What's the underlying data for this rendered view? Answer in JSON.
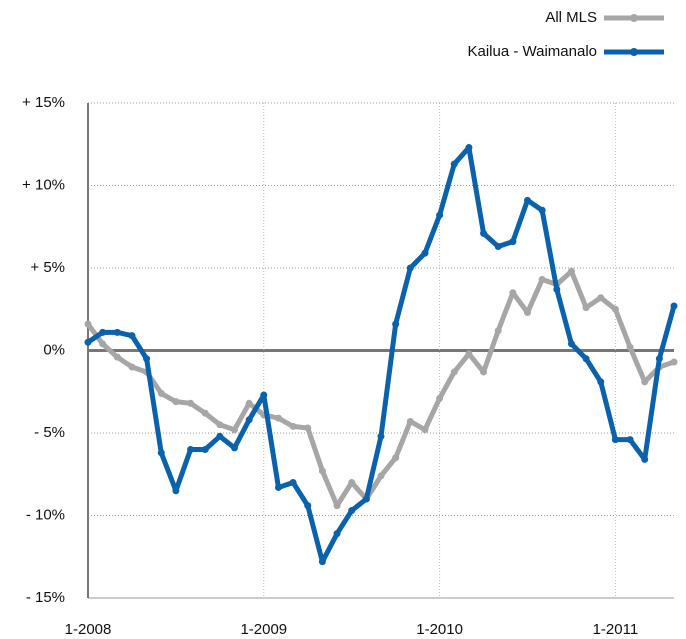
{
  "chart_data": {
    "type": "line",
    "x": [
      0,
      1,
      2,
      3,
      4,
      5,
      6,
      7,
      8,
      9,
      10,
      11,
      12,
      13,
      14,
      15,
      16,
      17,
      18,
      19,
      20,
      21,
      22,
      23,
      24,
      25,
      26,
      27,
      28,
      29,
      30,
      31,
      32,
      33,
      34,
      35,
      36,
      37,
      38,
      39,
      40
    ],
    "series": [
      {
        "name": "All MLS",
        "color": "#a6a6a6",
        "values": [
          1.6,
          0.4,
          -0.4,
          -1.0,
          -1.3,
          -2.6,
          -3.1,
          -3.2,
          -3.8,
          -4.5,
          -4.8,
          -3.2,
          -3.9,
          -4.1,
          -4.6,
          -4.7,
          -7.3,
          -9.4,
          -8.0,
          -9.0,
          -7.6,
          -6.5,
          -4.3,
          -4.8,
          -2.9,
          -1.3,
          -0.2,
          -1.3,
          1.2,
          3.5,
          2.3,
          4.3,
          4.0,
          4.8,
          2.6,
          3.2,
          2.5,
          0.2,
          -1.9,
          -1.0,
          -0.7
        ]
      },
      {
        "name": "Kailua - Waimanalo",
        "color": "#0a62ad",
        "values": [
          0.5,
          1.1,
          1.1,
          0.9,
          -0.5,
          -6.2,
          -8.5,
          -6.0,
          -6.0,
          -5.2,
          -5.9,
          -4.2,
          -2.7,
          -8.3,
          -8.0,
          -9.4,
          -12.8,
          -11.1,
          -9.7,
          -9.0,
          -5.2,
          1.6,
          5.0,
          5.9,
          8.2,
          11.3,
          12.3,
          7.1,
          6.3,
          6.6,
          9.1,
          8.5,
          3.7,
          0.4,
          -0.5,
          -1.9,
          -5.4,
          -5.4,
          -6.6,
          -0.5,
          2.7
        ]
      }
    ],
    "xlim": [
      0,
      40
    ],
    "xticks": [
      {
        "value": 0,
        "label": "1-2008"
      },
      {
        "value": 12,
        "label": "1-2009"
      },
      {
        "value": 24,
        "label": "1-2010"
      },
      {
        "value": 36,
        "label": "1-2011"
      }
    ],
    "ylim": [
      -15,
      15
    ],
    "yticks": [
      {
        "value": 15,
        "label": "+ 15%"
      },
      {
        "value": 10,
        "label": "+ 10%"
      },
      {
        "value": 5,
        "label": "+ 5%"
      },
      {
        "value": 0,
        "label": "0%"
      },
      {
        "value": -5,
        "label": "- 5%"
      },
      {
        "value": -10,
        "label": "- 10%"
      },
      {
        "value": -15,
        "label": "- 15%"
      }
    ],
    "grid": true,
    "legend": "top-right"
  }
}
